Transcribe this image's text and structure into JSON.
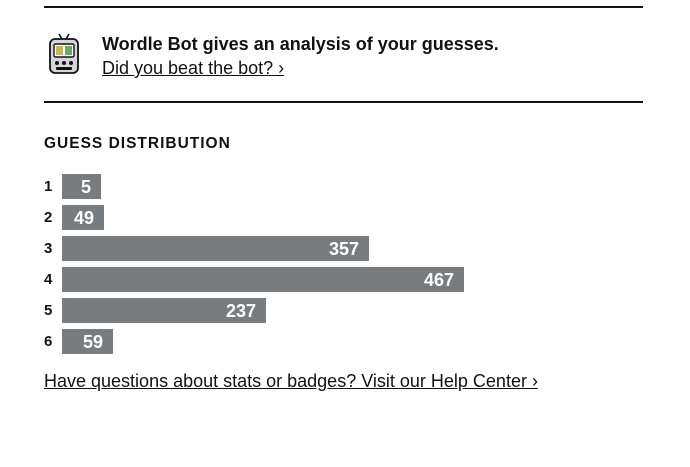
{
  "bot_banner": {
    "icon": "robot-icon",
    "title": "Wordle Bot gives an analysis of your guesses.",
    "link_label": "Did you beat the bot? ›"
  },
  "distribution": {
    "heading": "GUESS DISTRIBUTION",
    "rows": [
      {
        "guess": "1",
        "count": "5",
        "value": 5
      },
      {
        "guess": "2",
        "count": "49",
        "value": 49
      },
      {
        "guess": "3",
        "count": "357",
        "value": 357
      },
      {
        "guess": "4",
        "count": "467",
        "value": 467
      },
      {
        "guess": "5",
        "count": "237",
        "value": 237
      },
      {
        "guess": "6",
        "count": "59",
        "value": 59
      }
    ],
    "bar_color": "#787c7e"
  },
  "chart_data": {
    "type": "bar",
    "categories": [
      "1",
      "2",
      "3",
      "4",
      "5",
      "6"
    ],
    "values": [
      5,
      49,
      357,
      467,
      237,
      59
    ],
    "title": "GUESS DISTRIBUTION",
    "xlabel": "",
    "ylabel": ""
  },
  "help": {
    "link_label": "Have questions about stats or badges? Visit our Help Center ›"
  }
}
